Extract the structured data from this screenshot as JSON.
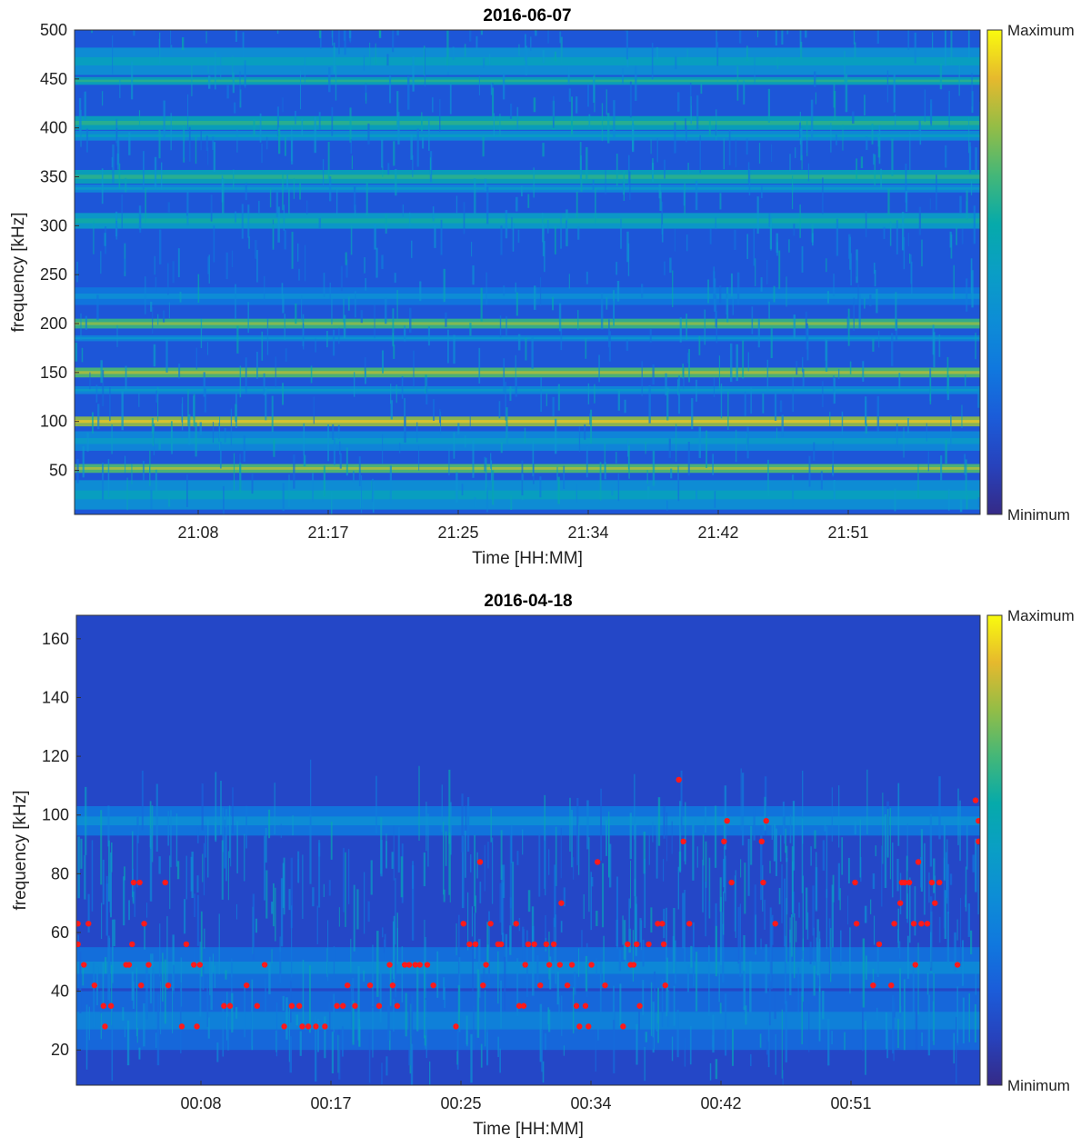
{
  "chart_data": [
    {
      "type": "heatmap",
      "title": "2016-06-07",
      "xlabel": "Time [HH:MM]",
      "ylabel": "frequency [kHz]",
      "ylim": [
        5,
        500
      ],
      "yticks": [
        50,
        100,
        150,
        200,
        250,
        300,
        350,
        400,
        450,
        500
      ],
      "xticks": [
        "21:08",
        "21:17",
        "21:25",
        "21:34",
        "21:42",
        "21:51"
      ],
      "xlim_minutes": [
        1260,
        1320
      ],
      "colorbar": {
        "max_label": "Maximum",
        "min_label": "Minimum"
      },
      "bands": [
        {
          "center": 468,
          "width": 28,
          "level": 0.42
        },
        {
          "center": 448,
          "width": 8,
          "level": 0.55
        },
        {
          "center": 405,
          "width": 14,
          "level": 0.55
        },
        {
          "center": 392,
          "width": 10,
          "level": 0.4
        },
        {
          "center": 350,
          "width": 14,
          "level": 0.55
        },
        {
          "center": 338,
          "width": 8,
          "level": 0.38
        },
        {
          "center": 305,
          "width": 16,
          "level": 0.5
        },
        {
          "center": 228,
          "width": 18,
          "level": 0.3
        },
        {
          "center": 200,
          "width": 10,
          "level": 0.68
        },
        {
          "center": 185,
          "width": 6,
          "level": 0.35
        },
        {
          "center": 150,
          "width": 10,
          "level": 0.72
        },
        {
          "center": 132,
          "width": 8,
          "level": 0.38
        },
        {
          "center": 100,
          "width": 10,
          "level": 0.8
        },
        {
          "center": 80,
          "width": 20,
          "level": 0.38
        },
        {
          "center": 52,
          "width": 9,
          "level": 0.72
        },
        {
          "center": 25,
          "width": 30,
          "level": 0.42
        }
      ]
    },
    {
      "type": "heatmap",
      "title": "2016-04-18",
      "xlabel": "Time [HH:MM]",
      "ylabel": "frequency [kHz]",
      "ylim": [
        8,
        168
      ],
      "yticks": [
        20,
        40,
        60,
        80,
        100,
        120,
        140,
        160
      ],
      "xticks": [
        "00:08",
        "00:17",
        "00:25",
        "00:34",
        "00:42",
        "00:51"
      ],
      "xlim_minutes": [
        0,
        60
      ],
      "colorbar": {
        "max_label": "Maximum",
        "min_label": "Minimum"
      },
      "bands": [
        {
          "center": 98,
          "width": 10,
          "level": 0.3
        },
        {
          "center": 48,
          "width": 14,
          "level": 0.28
        },
        {
          "center": 30,
          "width": 20,
          "level": 0.25
        }
      ],
      "detections": [
        [
          0.1,
          56
        ],
        [
          0.1,
          63
        ],
        [
          0.8,
          63
        ],
        [
          0.5,
          49
        ],
        [
          1.2,
          42
        ],
        [
          1.8,
          35
        ],
        [
          1.9,
          28
        ],
        [
          2.3,
          35
        ],
        [
          3.3,
          49
        ],
        [
          3.5,
          49
        ],
        [
          3.8,
          77
        ],
        [
          4.2,
          77
        ],
        [
          3.7,
          56
        ],
        [
          4.5,
          63
        ],
        [
          4.3,
          42
        ],
        [
          4.8,
          49
        ],
        [
          5.9,
          77
        ],
        [
          6.1,
          42
        ],
        [
          7.0,
          28
        ],
        [
          7.3,
          56
        ],
        [
          7.8,
          49
        ],
        [
          8.2,
          49
        ],
        [
          8.0,
          28
        ],
        [
          9.8,
          35
        ],
        [
          10.2,
          35
        ],
        [
          11.3,
          42
        ],
        [
          12.0,
          35
        ],
        [
          12.5,
          49
        ],
        [
          13.8,
          28
        ],
        [
          14.3,
          35
        ],
        [
          14.8,
          35
        ],
        [
          15.0,
          28
        ],
        [
          15.4,
          28
        ],
        [
          15.9,
          28
        ],
        [
          16.5,
          28
        ],
        [
          17.3,
          35
        ],
        [
          17.7,
          35
        ],
        [
          18.0,
          42
        ],
        [
          18.5,
          35
        ],
        [
          19.5,
          42
        ],
        [
          20.1,
          35
        ],
        [
          20.8,
          49
        ],
        [
          21.0,
          42
        ],
        [
          21.3,
          35
        ],
        [
          21.8,
          49
        ],
        [
          22.1,
          49
        ],
        [
          22.5,
          49
        ],
        [
          22.8,
          49
        ],
        [
          23.3,
          49
        ],
        [
          23.7,
          42
        ],
        [
          25.2,
          28
        ],
        [
          25.7,
          63
        ],
        [
          26.1,
          56
        ],
        [
          26.5,
          56
        ],
        [
          26.8,
          84
        ],
        [
          27.0,
          42
        ],
        [
          27.2,
          49
        ],
        [
          27.5,
          63
        ],
        [
          28.0,
          56
        ],
        [
          28.2,
          56
        ],
        [
          29.2,
          63
        ],
        [
          29.4,
          35
        ],
        [
          29.7,
          35
        ],
        [
          29.8,
          49
        ],
        [
          30.0,
          56
        ],
        [
          30.4,
          56
        ],
        [
          30.8,
          42
        ],
        [
          31.2,
          56
        ],
        [
          31.4,
          49
        ],
        [
          31.7,
          56
        ],
        [
          32.1,
          49
        ],
        [
          32.2,
          70
        ],
        [
          32.6,
          42
        ],
        [
          32.9,
          49
        ],
        [
          33.2,
          35
        ],
        [
          33.4,
          28
        ],
        [
          33.8,
          35
        ],
        [
          34.0,
          28
        ],
        [
          34.2,
          49
        ],
        [
          34.6,
          84
        ],
        [
          35.1,
          42
        ],
        [
          36.3,
          28
        ],
        [
          36.6,
          56
        ],
        [
          36.8,
          49
        ],
        [
          37.0,
          49
        ],
        [
          37.2,
          56
        ],
        [
          37.4,
          35
        ],
        [
          38.0,
          56
        ],
        [
          38.6,
          63
        ],
        [
          38.9,
          63
        ],
        [
          39.0,
          56
        ],
        [
          39.1,
          42
        ],
        [
          40.0,
          112
        ],
        [
          40.3,
          91
        ],
        [
          40.7,
          63
        ],
        [
          43.0,
          91
        ],
        [
          43.2,
          98
        ],
        [
          43.5,
          77
        ],
        [
          45.5,
          91
        ],
        [
          45.6,
          77
        ],
        [
          45.8,
          98
        ],
        [
          46.4,
          63
        ],
        [
          51.7,
          77
        ],
        [
          51.8,
          63
        ],
        [
          52.9,
          42
        ],
        [
          53.3,
          56
        ],
        [
          54.1,
          42
        ],
        [
          54.3,
          63
        ],
        [
          54.7,
          70
        ],
        [
          54.8,
          77
        ],
        [
          55.0,
          77
        ],
        [
          55.3,
          77
        ],
        [
          55.6,
          63
        ],
        [
          55.7,
          49
        ],
        [
          55.9,
          84
        ],
        [
          56.1,
          63
        ],
        [
          56.5,
          63
        ],
        [
          56.8,
          77
        ],
        [
          57.0,
          70
        ],
        [
          57.3,
          77
        ],
        [
          58.5,
          49
        ],
        [
          59.7,
          105
        ],
        [
          59.9,
          98
        ],
        [
          59.9,
          91
        ]
      ]
    }
  ]
}
